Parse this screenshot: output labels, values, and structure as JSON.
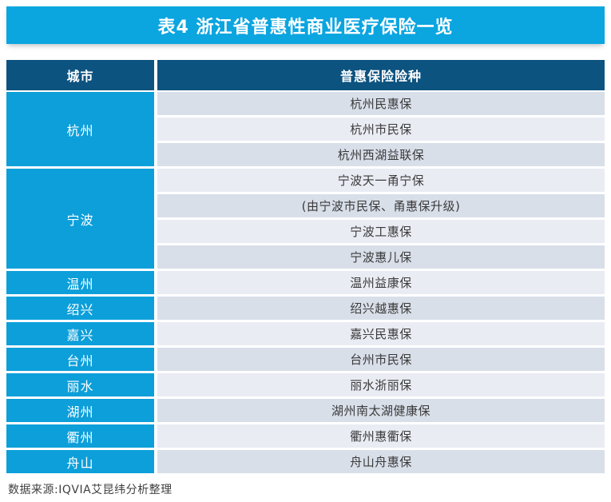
{
  "title": "表4 浙江省普惠性商业医疗保险一览",
  "table": {
    "headers": {
      "city": "城市",
      "products": "普惠保险险种"
    },
    "groups": [
      {
        "city": "杭州",
        "products": [
          "杭州民惠保",
          "杭州市民保",
          "杭州西湖益联保"
        ]
      },
      {
        "city": "宁波",
        "products": [
          "宁波天一甬宁保",
          "(由宁波市民保、甬惠保升级)",
          "宁波工惠保",
          "宁波惠儿保"
        ]
      },
      {
        "city": "温州",
        "products": [
          "温州益康保"
        ]
      },
      {
        "city": "绍兴",
        "products": [
          "绍兴越惠保"
        ]
      },
      {
        "city": "嘉兴",
        "products": [
          "嘉兴民惠保"
        ]
      },
      {
        "city": "台州",
        "products": [
          "台州市民保"
        ]
      },
      {
        "city": "丽水",
        "products": [
          "丽水浙丽保"
        ]
      },
      {
        "city": "湖州",
        "products": [
          "湖州南太湖健康保"
        ]
      },
      {
        "city": "衢州",
        "products": [
          "衢州惠衢保"
        ]
      },
      {
        "city": "舟山",
        "products": [
          "舟山舟惠保"
        ]
      }
    ]
  },
  "footer": {
    "source": "数据来源:IQVIA艾昆纬分析整理"
  },
  "colors": {
    "title_bar": "#0ba5e0",
    "header_row": "#0d5380",
    "city_cell": "#0c9fda",
    "row_odd": "#d8dfe9",
    "row_even": "#eaecf4",
    "cell_text": "#3a3a3a",
    "header_text": "#ffffff"
  },
  "chart_data": {
    "type": "table",
    "title": "表4 浙江省普惠性商业医疗保险一览",
    "columns": [
      "城市",
      "普惠保险险种"
    ],
    "rows": [
      [
        "杭州",
        "杭州民惠保"
      ],
      [
        "杭州",
        "杭州市民保"
      ],
      [
        "杭州",
        "杭州西湖益联保"
      ],
      [
        "宁波",
        "宁波天一甬宁保"
      ],
      [
        "宁波",
        "(由宁波市民保、甬惠保升级)"
      ],
      [
        "宁波",
        "宁波工惠保"
      ],
      [
        "宁波",
        "宁波惠儿保"
      ],
      [
        "温州",
        "温州益康保"
      ],
      [
        "绍兴",
        "绍兴越惠保"
      ],
      [
        "嘉兴",
        "嘉兴民惠保"
      ],
      [
        "台州",
        "台州市民保"
      ],
      [
        "丽水",
        "丽水浙丽保"
      ],
      [
        "湖州",
        "湖州南太湖健康保"
      ],
      [
        "衢州",
        "衢州惠衢保"
      ],
      [
        "舟山",
        "舟山舟惠保"
      ]
    ],
    "source": "数据来源:IQVIA艾昆纬分析整理",
    "layout": {
      "merged_city_cells": true,
      "striped_rows": true,
      "legend_position": "none",
      "grid": "off"
    }
  }
}
